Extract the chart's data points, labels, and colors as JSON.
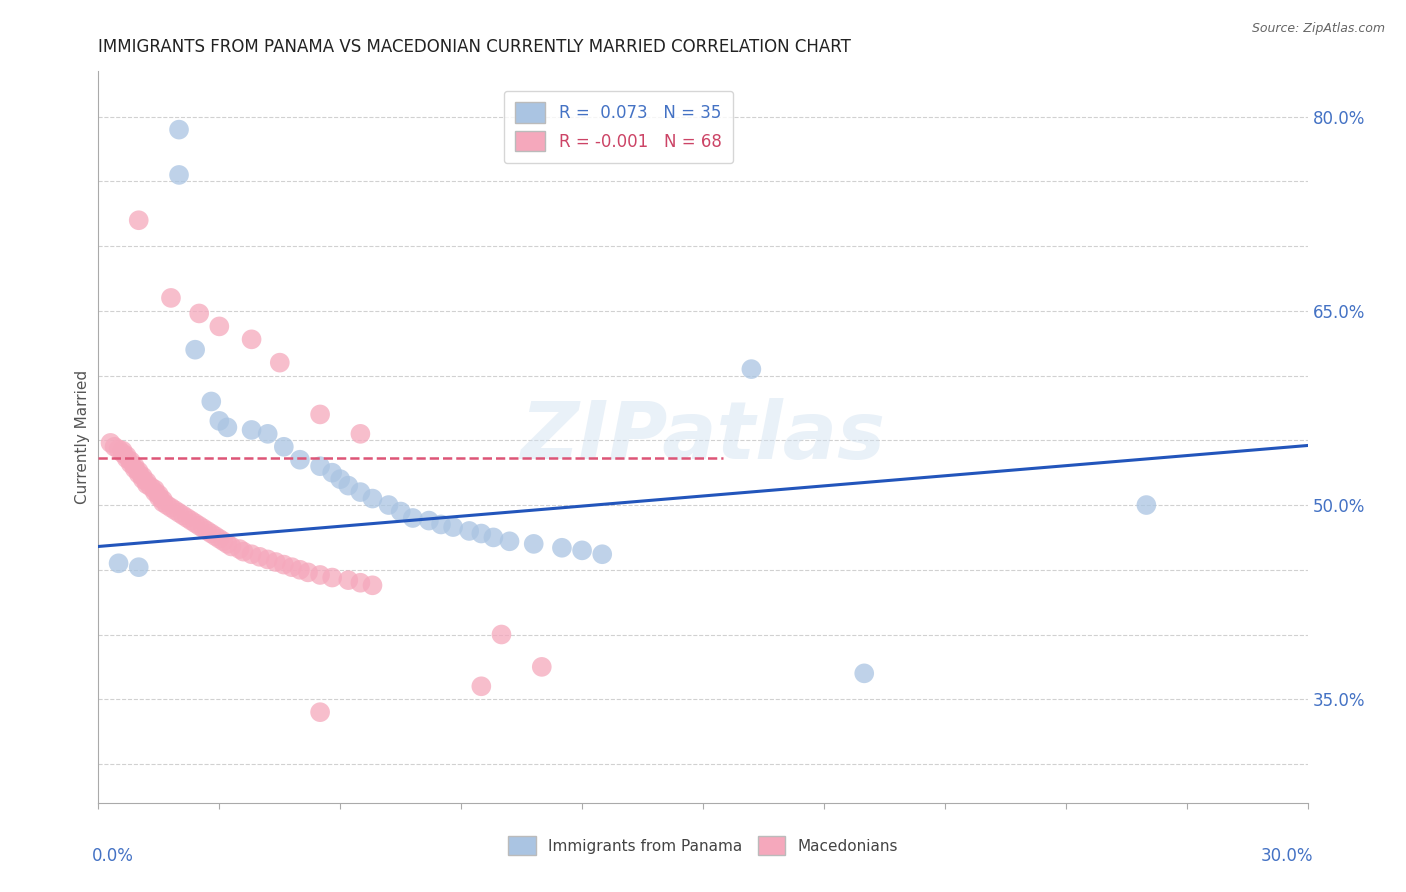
{
  "title": "IMMIGRANTS FROM PANAMA VS MACEDONIAN CURRENTLY MARRIED CORRELATION CHART",
  "source": "Source: ZipAtlas.com",
  "ylabel": "Currently Married",
  "xmin": 0.0,
  "xmax": 0.3,
  "ymin": 0.27,
  "ymax": 0.835,
  "blue_R": 0.073,
  "blue_N": 35,
  "pink_R": -0.001,
  "pink_N": 68,
  "blue_color": "#aac4e2",
  "pink_color": "#f5a8bc",
  "blue_line_color": "#2255bb",
  "pink_line_color": "#dd5577",
  "legend_blue_label": "R =  0.073   N = 35",
  "legend_pink_label": "R = -0.001   N = 68",
  "watermark": "ZIPatlas",
  "right_ytick_labels": [
    "35.0%",
    "50.0%",
    "65.0%",
    "80.0%"
  ],
  "right_ytick_vals": [
    0.35,
    0.5,
    0.65,
    0.8
  ],
  "blue_trend_x": [
    0.0,
    0.3
  ],
  "blue_trend_y": [
    0.468,
    0.546
  ],
  "pink_trend_x": [
    0.0,
    0.155
  ],
  "pink_trend_y": [
    0.536,
    0.536
  ],
  "blue_scatter_x": [
    0.02,
    0.02,
    0.024,
    0.028,
    0.03,
    0.032,
    0.038,
    0.042,
    0.046,
    0.05,
    0.055,
    0.058,
    0.06,
    0.062,
    0.065,
    0.068,
    0.072,
    0.075,
    0.078,
    0.082,
    0.085,
    0.088,
    0.092,
    0.095,
    0.098,
    0.102,
    0.108,
    0.115,
    0.12,
    0.125,
    0.005,
    0.01,
    0.162,
    0.26,
    0.19
  ],
  "blue_scatter_y": [
    0.79,
    0.755,
    0.62,
    0.58,
    0.565,
    0.56,
    0.558,
    0.555,
    0.545,
    0.535,
    0.53,
    0.525,
    0.52,
    0.515,
    0.51,
    0.505,
    0.5,
    0.495,
    0.49,
    0.488,
    0.485,
    0.483,
    0.48,
    0.478,
    0.475,
    0.472,
    0.47,
    0.467,
    0.465,
    0.462,
    0.455,
    0.452,
    0.605,
    0.5,
    0.37
  ],
  "pink_scatter_x": [
    0.003,
    0.004,
    0.005,
    0.006,
    0.006,
    0.007,
    0.007,
    0.008,
    0.008,
    0.009,
    0.009,
    0.01,
    0.01,
    0.011,
    0.011,
    0.012,
    0.012,
    0.013,
    0.014,
    0.014,
    0.015,
    0.015,
    0.016,
    0.016,
    0.017,
    0.018,
    0.019,
    0.02,
    0.021,
    0.022,
    0.023,
    0.024,
    0.025,
    0.026,
    0.027,
    0.028,
    0.029,
    0.03,
    0.031,
    0.032,
    0.033,
    0.035,
    0.036,
    0.038,
    0.04,
    0.042,
    0.044,
    0.046,
    0.048,
    0.05,
    0.052,
    0.055,
    0.058,
    0.062,
    0.065,
    0.068,
    0.01,
    0.018,
    0.025,
    0.03,
    0.038,
    0.045,
    0.055,
    0.065,
    0.1,
    0.11,
    0.055,
    0.095
  ],
  "pink_scatter_y": [
    0.548,
    0.545,
    0.543,
    0.542,
    0.54,
    0.538,
    0.536,
    0.534,
    0.532,
    0.53,
    0.528,
    0.526,
    0.524,
    0.522,
    0.52,
    0.518,
    0.516,
    0.514,
    0.512,
    0.51,
    0.508,
    0.506,
    0.504,
    0.502,
    0.5,
    0.498,
    0.496,
    0.494,
    0.492,
    0.49,
    0.488,
    0.486,
    0.484,
    0.482,
    0.48,
    0.478,
    0.476,
    0.474,
    0.472,
    0.47,
    0.468,
    0.466,
    0.464,
    0.462,
    0.46,
    0.458,
    0.456,
    0.454,
    0.452,
    0.45,
    0.448,
    0.446,
    0.444,
    0.442,
    0.44,
    0.438,
    0.72,
    0.66,
    0.648,
    0.638,
    0.628,
    0.61,
    0.57,
    0.555,
    0.4,
    0.375,
    0.34,
    0.36
  ]
}
